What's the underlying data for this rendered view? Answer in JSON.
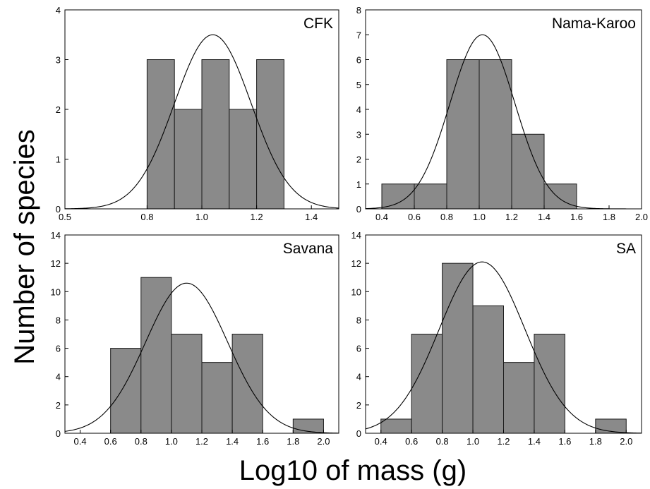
{
  "figure": {
    "ylabel": "Number of species",
    "xlabel": "Log10 of mass (g)"
  },
  "chart_data": [
    {
      "type": "bar",
      "title": "CFK",
      "xlim": [
        0.5,
        1.5
      ],
      "ylim": [
        0,
        4
      ],
      "xticks": [
        0.5,
        0.8,
        1.0,
        1.2,
        1.4
      ],
      "xtick_labels": [
        "0.5",
        "0.8",
        "1.0",
        "1.2",
        "1.4"
      ],
      "yticks": [
        0,
        1,
        2,
        3,
        4
      ],
      "ytick_labels": [
        "0",
        "1",
        "2",
        "3",
        "4"
      ],
      "bins": [
        {
          "x0": 0.8,
          "x1": 0.9,
          "value": 3
        },
        {
          "x0": 0.9,
          "x1": 1.0,
          "value": 2
        },
        {
          "x0": 1.0,
          "x1": 1.1,
          "value": 3
        },
        {
          "x0": 1.1,
          "x1": 1.2,
          "value": 2
        },
        {
          "x0": 1.2,
          "x1": 1.3,
          "value": 3
        }
      ],
      "normal_fit": {
        "mean": 1.04,
        "sd": 0.14,
        "peak": 3.5
      }
    },
    {
      "type": "bar",
      "title": "Nama-Karoo",
      "xlim": [
        0.3,
        2.0
      ],
      "ylim": [
        0,
        8
      ],
      "xticks": [
        0.4,
        0.6,
        0.8,
        1.0,
        1.2,
        1.4,
        1.6,
        1.8,
        2.0
      ],
      "xtick_labels": [
        "0.4",
        "0.6",
        "0.8",
        "1.0",
        "1.2",
        "1.4",
        "1.6",
        "1.8",
        "2.0"
      ],
      "yticks": [
        0,
        1,
        2,
        3,
        4,
        5,
        6,
        7,
        8
      ],
      "ytick_labels": [
        "0",
        "1",
        "2",
        "3",
        "4",
        "5",
        "6",
        "7",
        "8"
      ],
      "bins": [
        {
          "x0": 0.4,
          "x1": 0.6,
          "value": 1
        },
        {
          "x0": 0.6,
          "x1": 0.8,
          "value": 1
        },
        {
          "x0": 0.8,
          "x1": 1.0,
          "value": 6
        },
        {
          "x0": 1.0,
          "x1": 1.2,
          "value": 6
        },
        {
          "x0": 1.2,
          "x1": 1.4,
          "value": 3
        },
        {
          "x0": 1.4,
          "x1": 1.6,
          "value": 1
        }
      ],
      "normal_fit": {
        "mean": 1.02,
        "sd": 0.2,
        "peak": 7.0
      }
    },
    {
      "type": "bar",
      "title": "Savana",
      "xlim": [
        0.3,
        2.1
      ],
      "ylim": [
        0,
        14
      ],
      "xticks": [
        0.4,
        0.6,
        0.8,
        1.0,
        1.2,
        1.4,
        1.6,
        1.8,
        2.0
      ],
      "xtick_labels": [
        "0.4",
        "0.6",
        "0.8",
        "1.0",
        "1.2",
        "1.4",
        "1.6",
        "1.8",
        "2.0"
      ],
      "yticks": [
        0,
        2,
        4,
        6,
        8,
        10,
        12,
        14
      ],
      "ytick_labels": [
        "0",
        "2",
        "4",
        "6",
        "8",
        "10",
        "12",
        "14"
      ],
      "bins": [
        {
          "x0": 0.6,
          "x1": 0.8,
          "value": 6
        },
        {
          "x0": 0.8,
          "x1": 1.0,
          "value": 11
        },
        {
          "x0": 1.0,
          "x1": 1.2,
          "value": 7
        },
        {
          "x0": 1.2,
          "x1": 1.4,
          "value": 5
        },
        {
          "x0": 1.4,
          "x1": 1.6,
          "value": 7
        },
        {
          "x0": 1.8,
          "x1": 2.0,
          "value": 1
        }
      ],
      "normal_fit": {
        "mean": 1.1,
        "sd": 0.27,
        "peak": 10.6
      }
    },
    {
      "type": "bar",
      "title": "SA",
      "xlim": [
        0.3,
        2.1
      ],
      "ylim": [
        0,
        14
      ],
      "xticks": [
        0.4,
        0.6,
        0.8,
        1.0,
        1.2,
        1.4,
        1.6,
        1.8,
        2.0
      ],
      "xtick_labels": [
        "0.4",
        "0.6",
        "0.8",
        "1.0",
        "1.2",
        "1.4",
        "1.6",
        "1.8",
        "2.0"
      ],
      "yticks": [
        0,
        2,
        4,
        6,
        8,
        10,
        12,
        14
      ],
      "ytick_labels": [
        "0",
        "2",
        "4",
        "6",
        "8",
        "10",
        "12",
        "14"
      ],
      "bins": [
        {
          "x0": 0.4,
          "x1": 0.6,
          "value": 1
        },
        {
          "x0": 0.6,
          "x1": 0.8,
          "value": 7
        },
        {
          "x0": 0.8,
          "x1": 1.0,
          "value": 12
        },
        {
          "x0": 1.0,
          "x1": 1.2,
          "value": 9
        },
        {
          "x0": 1.2,
          "x1": 1.4,
          "value": 5
        },
        {
          "x0": 1.4,
          "x1": 1.6,
          "value": 7
        },
        {
          "x0": 1.8,
          "x1": 2.0,
          "value": 1
        }
      ],
      "normal_fit": {
        "mean": 1.06,
        "sd": 0.28,
        "peak": 12.1
      }
    }
  ]
}
